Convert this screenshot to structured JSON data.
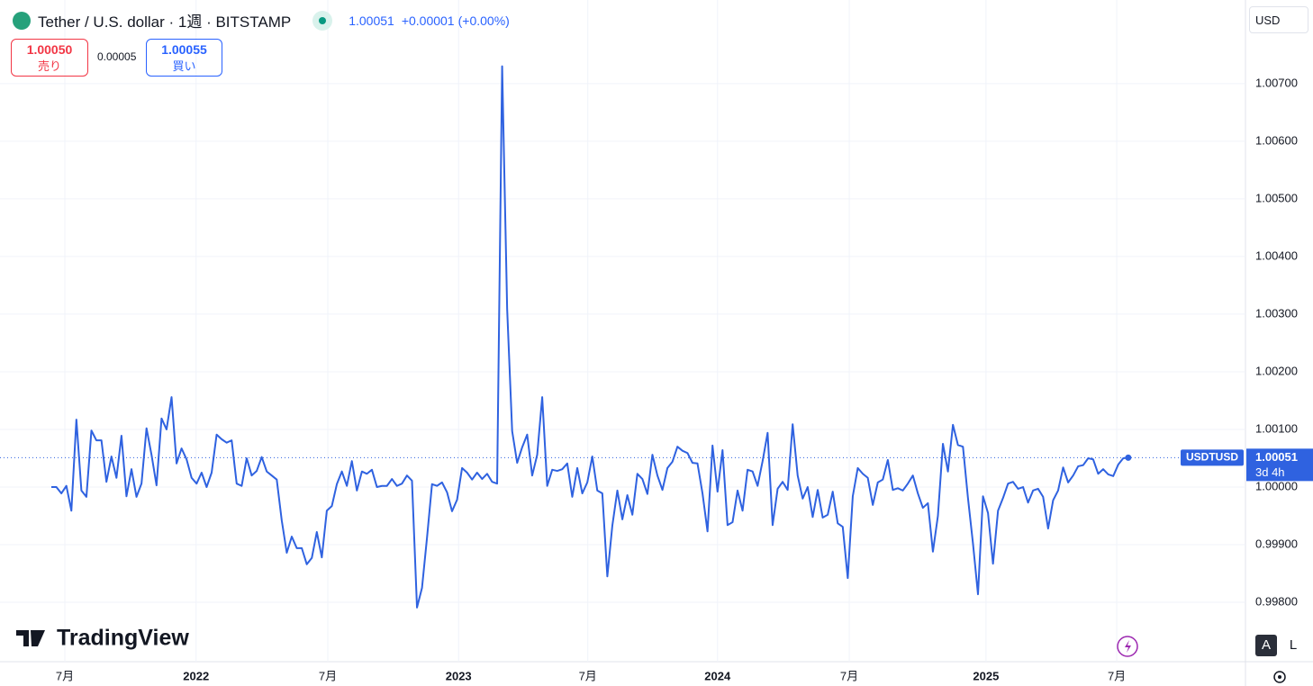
{
  "header": {
    "brand": "TradingView",
    "last": "1.00051",
    "change": "+0.00001",
    "change_pct": "(+0.00%)",
    "sell_price": "1.00050",
    "sell_label": "売り",
    "spread": "0.00005",
    "buy_price": "1.00055",
    "buy_label": "買い",
    "currency": "USD",
    "symbol_tag": "USDTUSD",
    "tag_price": "1.00051",
    "countdown": "3d 4h",
    "auto": "A",
    "log": "L"
  },
  "chart_data": {
    "type": "line",
    "title": "Tether / U.S. dollar · 1週 · BITSTAMP",
    "color": "#2f62e0",
    "grid": true,
    "ylim": [
      0.99697,
      1.00845
    ],
    "yticks": [
      {
        "value": 0.998,
        "label": "0.99800"
      },
      {
        "value": 0.999,
        "label": "0.99900"
      },
      {
        "value": 1.0,
        "label": "1.00000"
      },
      {
        "value": 1.001,
        "label": "1.00100"
      },
      {
        "value": 1.002,
        "label": "1.00200"
      },
      {
        "value": 1.003,
        "label": "1.00300"
      },
      {
        "value": 1.004,
        "label": "1.00400"
      },
      {
        "value": 1.005,
        "label": "1.00500"
      },
      {
        "value": 1.006,
        "label": "1.00600"
      },
      {
        "value": 1.007,
        "label": "1.00700"
      }
    ],
    "xlim": [
      -10.25,
      238.4
    ],
    "xticks": [
      {
        "value": 2.7,
        "label": "7月"
      },
      {
        "value": 28.9,
        "label": "2022"
      },
      {
        "value": 55.2,
        "label": "7月"
      },
      {
        "value": 81.3,
        "label": "2023"
      },
      {
        "value": 107.1,
        "label": "7月"
      },
      {
        "value": 133.0,
        "label": "2024"
      },
      {
        "value": 159.3,
        "label": "7月"
      },
      {
        "value": 186.6,
        "label": "2025"
      },
      {
        "value": 212.7,
        "label": "7月"
      }
    ],
    "values": [
      1.0,
      1.0,
      0.99989,
      1.00002,
      0.99959,
      1.00117,
      0.99994,
      0.99983,
      1.00098,
      1.00081,
      1.00081,
      1.00009,
      1.00053,
      1.00016,
      1.00089,
      0.99984,
      1.00031,
      0.99983,
      1.00006,
      1.00102,
      1.00056,
      1.00003,
      1.00119,
      1.001,
      1.00156,
      1.00041,
      1.00067,
      1.00048,
      1.00016,
      1.00006,
      1.00025,
      1.0,
      1.00025,
      1.00091,
      1.00083,
      1.00077,
      1.00081,
      1.00006,
      1.00002,
      1.0005,
      1.0002,
      1.00028,
      1.00052,
      1.00027,
      1.0002,
      1.00013,
      0.99942,
      0.99886,
      0.99914,
      0.99894,
      0.99894,
      0.99866,
      0.99877,
      0.99922,
      0.99878,
      0.99959,
      0.99967,
      1.00005,
      1.00027,
      1.00002,
      1.00045,
      0.99994,
      1.00027,
      1.00023,
      1.0003,
      1.0,
      1.00002,
      1.00002,
      1.00014,
      1.00002,
      1.00006,
      1.0002,
      1.00011,
      0.99791,
      0.99825,
      0.99912,
      1.00005,
      1.00002,
      1.00008,
      0.99991,
      0.99958,
      0.99978,
      1.00033,
      1.00025,
      1.00013,
      1.00025,
      1.00014,
      1.00023,
      1.00009,
      1.00006,
      1.0073,
      1.00309,
      1.00097,
      1.00042,
      1.00069,
      1.00091,
      1.0002,
      1.00056,
      1.00156,
      1.00002,
      1.0003,
      1.00028,
      1.00031,
      1.00041,
      0.99983,
      1.00033,
      0.99989,
      1.00008,
      1.00053,
      0.99994,
      0.99989,
      0.99845,
      0.99933,
      0.99994,
      0.99944,
      0.99986,
      0.99952,
      1.00023,
      1.00014,
      0.99988,
      1.00056,
      1.0002,
      0.99995,
      1.00033,
      1.00044,
      1.0007,
      1.00063,
      1.00059,
      1.00042,
      1.00041,
      0.99989,
      0.99923,
      1.00072,
      0.99992,
      1.00064,
      0.99934,
      0.99939,
      0.99994,
      0.99959,
      1.0003,
      1.00027,
      1.00002,
      1.00045,
      1.00094,
      0.99934,
      0.99997,
      1.00009,
      0.99995,
      1.00109,
      1.0002,
      0.9998,
      1.0,
      0.99948,
      0.99995,
      0.99947,
      0.99952,
      0.99992,
      0.99937,
      0.99931,
      0.99842,
      0.99984,
      1.00033,
      1.00023,
      1.00016,
      0.99969,
      1.00008,
      1.00013,
      1.00047,
      0.99995,
      0.99998,
      0.99994,
      1.00006,
      1.0002,
      0.99989,
      0.99964,
      0.99972,
      0.99888,
      0.9995,
      1.00075,
      1.00027,
      1.00108,
      1.00073,
      1.0007,
      0.99981,
      0.99902,
      0.99814,
      0.99984,
      0.99955,
      0.99867,
      0.99959,
      0.99981,
      1.00006,
      1.00009,
      0.99997,
      1.0,
      0.99973,
      0.99994,
      0.99997,
      0.99983,
      0.99928,
      0.99977,
      0.99994,
      1.00034,
      1.00008,
      1.0002,
      1.00036,
      1.00038,
      1.0005,
      1.00048,
      1.00023,
      1.00031,
      1.00022,
      1.00019,
      1.00039,
      1.0005,
      1.00051
    ]
  }
}
